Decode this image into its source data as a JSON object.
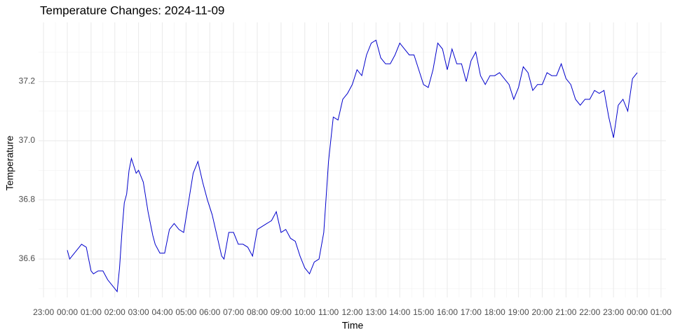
{
  "chart_data": {
    "type": "line",
    "title": "Temperature Changes: 2024-11-09",
    "x_label": "Time",
    "y_label": "Temperature",
    "x": [
      0,
      0.1,
      0.3,
      0.5,
      0.6,
      0.8,
      1.0,
      1.1,
      1.3,
      1.5,
      1.7,
      1.9,
      2.0,
      2.1,
      2.2,
      2.3,
      2.4,
      2.5,
      2.6,
      2.7,
      2.9,
      3.0,
      3.2,
      3.4,
      3.6,
      3.7,
      3.9,
      4.1,
      4.3,
      4.5,
      4.7,
      4.9,
      5.1,
      5.3,
      5.5,
      5.7,
      5.9,
      6.1,
      6.3,
      6.5,
      6.6,
      6.8,
      7.0,
      7.2,
      7.4,
      7.6,
      7.8,
      8.0,
      8.2,
      8.4,
      8.6,
      8.8,
      9.0,
      9.2,
      9.4,
      9.6,
      9.8,
      10.0,
      10.2,
      10.4,
      10.6,
      10.8,
      11.0,
      11.2,
      11.4,
      11.6,
      11.8,
      12.0,
      12.2,
      12.4,
      12.6,
      12.8,
      13.0,
      13.2,
      13.4,
      13.6,
      13.8,
      14.0,
      14.2,
      14.4,
      14.6,
      14.8,
      15.0,
      15.2,
      15.4,
      15.6,
      15.8,
      16.0,
      16.2,
      16.4,
      16.6,
      16.8,
      17.0,
      17.2,
      17.4,
      17.6,
      17.8,
      18.0,
      18.2,
      18.4,
      18.6,
      18.8,
      19.0,
      19.2,
      19.4,
      19.6,
      19.8,
      20.0,
      20.2,
      20.4,
      20.6,
      20.8,
      21.0,
      21.2,
      21.4,
      21.6,
      21.8,
      22.0,
      22.2,
      22.4,
      22.6,
      22.8,
      23.0,
      23.2,
      23.4,
      23.6,
      23.8,
      24.0
    ],
    "series": [
      {
        "name": "Temperature",
        "color": "#0000cc",
        "values": [
          36.63,
          36.6,
          36.62,
          36.64,
          36.65,
          36.64,
          36.56,
          36.55,
          36.56,
          36.56,
          36.53,
          36.51,
          36.5,
          36.49,
          36.57,
          36.69,
          36.79,
          36.82,
          36.9,
          36.94,
          36.89,
          36.9,
          36.86,
          36.76,
          36.68,
          36.65,
          36.62,
          36.62,
          36.7,
          36.72,
          36.7,
          36.69,
          36.79,
          36.89,
          36.93,
          36.86,
          36.8,
          36.75,
          36.68,
          36.61,
          36.6,
          36.69,
          36.69,
          36.65,
          36.65,
          36.64,
          36.61,
          36.7,
          36.71,
          36.72,
          36.73,
          36.76,
          36.69,
          36.7,
          36.67,
          36.66,
          36.61,
          36.57,
          36.55,
          36.59,
          36.6,
          36.69,
          36.93,
          37.08,
          37.07,
          37.14,
          37.16,
          37.19,
          37.24,
          37.22,
          37.29,
          37.33,
          37.34,
          37.28,
          37.26,
          37.26,
          37.29,
          37.33,
          37.31,
          37.29,
          37.29,
          37.24,
          37.19,
          37.18,
          37.24,
          37.33,
          37.31,
          37.24,
          37.31,
          37.26,
          37.26,
          37.2,
          37.27,
          37.3,
          37.22,
          37.19,
          37.22,
          37.22,
          37.23,
          37.21,
          37.19,
          37.14,
          37.18,
          37.25,
          37.23,
          37.17,
          37.19,
          37.19,
          37.23,
          37.22,
          37.22,
          37.26,
          37.21,
          37.19,
          37.14,
          37.12,
          37.14,
          37.14,
          37.17,
          37.16,
          37.17,
          37.08,
          37.01,
          37.12,
          37.14,
          37.1,
          37.21,
          37.23
        ]
      }
    ],
    "xlim": [
      -1.21,
      25.21
    ],
    "xticks": [
      {
        "value": -1,
        "label": "23:00"
      },
      {
        "value": 0,
        "label": "00:00"
      },
      {
        "value": 1,
        "label": "01:00"
      },
      {
        "value": 2,
        "label": "02:00"
      },
      {
        "value": 3,
        "label": "03:00"
      },
      {
        "value": 4,
        "label": "04:00"
      },
      {
        "value": 5,
        "label": "05:00"
      },
      {
        "value": 6,
        "label": "06:00"
      },
      {
        "value": 7,
        "label": "07:00"
      },
      {
        "value": 8,
        "label": "08:00"
      },
      {
        "value": 9,
        "label": "09:00"
      },
      {
        "value": 10,
        "label": "10:00"
      },
      {
        "value": 11,
        "label": "11:00"
      },
      {
        "value": 12,
        "label": "12:00"
      },
      {
        "value": 13,
        "label": "13:00"
      },
      {
        "value": 14,
        "label": "14:00"
      },
      {
        "value": 15,
        "label": "15:00"
      },
      {
        "value": 16,
        "label": "16:00"
      },
      {
        "value": 17,
        "label": "17:00"
      },
      {
        "value": 18,
        "label": "18:00"
      },
      {
        "value": 19,
        "label": "19:00"
      },
      {
        "value": 20,
        "label": "20:00"
      },
      {
        "value": 21,
        "label": "21:00"
      },
      {
        "value": 22,
        "label": "22:00"
      },
      {
        "value": 23,
        "label": "23:00"
      },
      {
        "value": 24,
        "label": "00:00"
      },
      {
        "value": 25,
        "label": "01:00"
      }
    ],
    "ylim": [
      36.47,
      37.4
    ],
    "yticks": [
      36.6,
      36.8,
      {
        "value": 37,
        "label": "37.0"
      },
      37.2
    ],
    "grid": true
  }
}
